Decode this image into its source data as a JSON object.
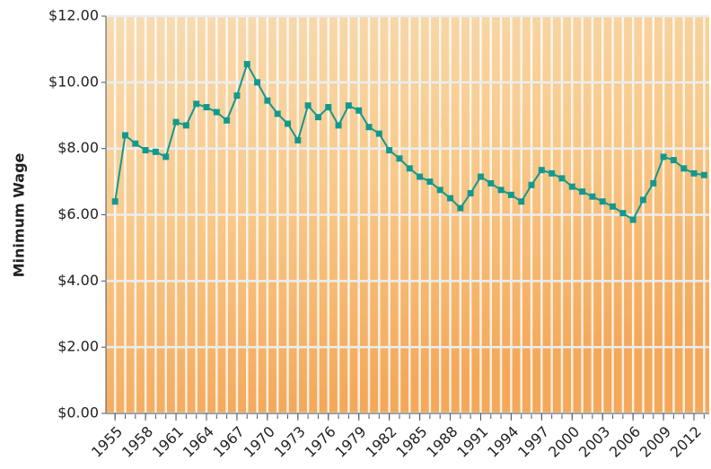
{
  "chart_data": {
    "type": "line",
    "y_label": "Minimum Wage",
    "x": [
      1955,
      1956,
      1957,
      1958,
      1959,
      1960,
      1961,
      1962,
      1963,
      1964,
      1965,
      1966,
      1967,
      1968,
      1969,
      1970,
      1971,
      1972,
      1973,
      1974,
      1975,
      1976,
      1977,
      1978,
      1979,
      1980,
      1981,
      1982,
      1983,
      1984,
      1985,
      1986,
      1987,
      1988,
      1989,
      1990,
      1991,
      1992,
      1993,
      1994,
      1995,
      1996,
      1997,
      1998,
      1999,
      2000,
      2001,
      2002,
      2003,
      2004,
      2005,
      2006,
      2007,
      2008,
      2009,
      2010,
      2011,
      2012,
      2013
    ],
    "series": [
      {
        "color": "#14998e",
        "values": [
          6.4,
          8.4,
          8.15,
          7.95,
          7.9,
          7.75,
          8.8,
          8.7,
          9.35,
          9.25,
          9.1,
          8.85,
          9.6,
          10.55,
          10.0,
          9.45,
          9.05,
          8.75,
          8.25,
          9.3,
          8.95,
          9.25,
          8.7,
          9.3,
          9.15,
          8.65,
          8.45,
          7.95,
          7.7,
          7.4,
          7.15,
          7.0,
          6.75,
          6.5,
          6.2,
          6.65,
          7.15,
          6.95,
          6.75,
          6.6,
          6.4,
          6.9,
          7.35,
          7.25,
          7.1,
          6.85,
          6.7,
          6.55,
          6.4,
          6.25,
          6.05,
          5.85,
          6.45,
          6.95,
          7.75,
          7.65,
          7.4,
          7.25,
          7.2
        ]
      }
    ],
    "xlim": [
      1954.1,
      2013.5
    ],
    "xticks": [
      1955,
      1958,
      1961,
      1964,
      1967,
      1970,
      1973,
      1976,
      1979,
      1982,
      1985,
      1988,
      1991,
      1994,
      1997,
      2000,
      2003,
      2006,
      2009,
      2012
    ],
    "ylim": [
      0,
      12
    ],
    "yticks": [
      {
        "value": 0,
        "label": "$0.00"
      },
      {
        "value": 2,
        "label": "$2.00"
      },
      {
        "value": 4,
        "label": "$4.00"
      },
      {
        "value": 6,
        "label": "$6.00"
      },
      {
        "value": 8,
        "label": "$8.00"
      },
      {
        "value": 10,
        "label": "$10.00"
      },
      {
        "value": 12,
        "label": "$12.00"
      }
    ],
    "grid": true
  }
}
